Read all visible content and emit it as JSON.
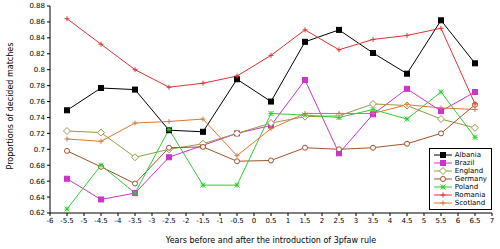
{
  "chart_data": {
    "type": "line",
    "x_label": "Years before and after the introduction of 3pfaw rule",
    "y_label": "Proportions of decided matches",
    "x": [
      -5.5,
      -4.5,
      -3.5,
      -2.5,
      -1.5,
      -0.5,
      0.5,
      1.5,
      2.5,
      3.5,
      4.5,
      5.5,
      6.5
    ],
    "xlim": [
      -6,
      7
    ],
    "xticks": [
      -6,
      -5.5,
      -5,
      -4.5,
      -4,
      -3.5,
      -3,
      -2.5,
      -2,
      -1.5,
      -1,
      -0.5,
      0,
      0.5,
      1,
      1.5,
      2,
      2.5,
      3,
      3.5,
      4,
      4.5,
      5,
      5.5,
      6,
      6.5,
      7
    ],
    "ylim": [
      0.62,
      0.88
    ],
    "yticks": [
      0.62,
      0.64,
      0.66,
      0.68,
      0.7,
      0.72,
      0.74,
      0.76,
      0.78,
      0.8,
      0.82,
      0.84,
      0.86,
      0.88
    ],
    "grid": false,
    "legend": "lower right",
    "series": [
      {
        "name": "Albania",
        "color": "#000000",
        "marker": "square",
        "values": [
          0.749,
          0.777,
          0.775,
          0.724,
          0.722,
          0.788,
          0.76,
          0.835,
          0.85,
          0.821,
          0.795,
          0.862,
          0.808
        ]
      },
      {
        "name": "Brazil",
        "color": "#cc33cc",
        "marker": "square",
        "values": [
          0.663,
          0.637,
          0.645,
          0.69,
          0.705,
          0.72,
          0.73,
          0.787,
          0.695,
          0.744,
          0.776,
          0.748,
          0.772
        ]
      },
      {
        "name": "England",
        "color": "#999944",
        "marker": "diamond",
        "values": [
          0.723,
          0.721,
          0.69,
          0.7,
          0.707,
          0.72,
          0.733,
          0.741,
          0.742,
          0.757,
          0.755,
          0.738,
          0.727
        ]
      },
      {
        "name": "Germany",
        "color": "#a0522d",
        "marker": "circle",
        "values": [
          0.698,
          0.678,
          0.657,
          0.702,
          0.703,
          0.685,
          0.686,
          0.702,
          0.7,
          0.702,
          0.707,
          0.72,
          0.756
        ]
      },
      {
        "name": "Poland",
        "color": "#33cc33",
        "marker": "star",
        "values": [
          0.625,
          0.68,
          0.645,
          0.725,
          0.655,
          0.655,
          0.745,
          0.743,
          0.74,
          0.75,
          0.738,
          0.772,
          0.715
        ]
      },
      {
        "name": "Romania",
        "color": "#dd3333",
        "marker": "plus",
        "values": [
          0.864,
          0.832,
          0.8,
          0.778,
          0.783,
          0.792,
          0.818,
          0.85,
          0.825,
          0.838,
          0.843,
          0.852,
          0.757
        ]
      },
      {
        "name": "Scotland",
        "color": "#dd7733",
        "marker": "plus",
        "values": [
          0.713,
          0.71,
          0.733,
          0.735,
          0.738,
          0.692,
          0.726,
          0.745,
          0.745,
          0.745,
          0.756,
          0.752,
          0.75
        ]
      }
    ]
  }
}
